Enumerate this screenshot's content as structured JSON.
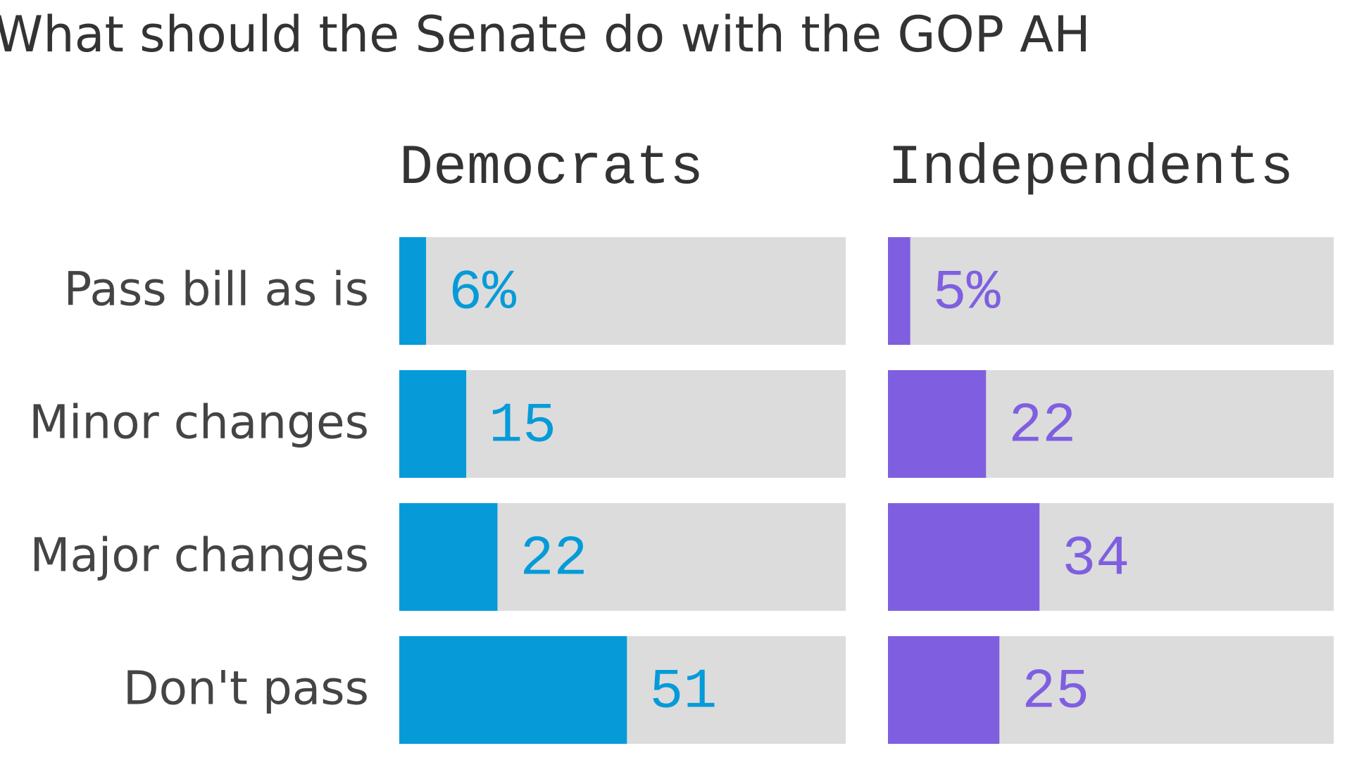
{
  "chart_data": {
    "type": "bar",
    "title": "What should the Senate do with the GOP AH",
    "categories": [
      "Pass bill as is",
      "Minor changes",
      "Major changes",
      "Don't pass"
    ],
    "series": [
      {
        "name": "Democrats",
        "color": "#069bd8",
        "values": [
          6,
          15,
          22,
          51
        ],
        "value_labels": [
          "6%",
          "15",
          "22",
          "51"
        ]
      },
      {
        "name": "Independents",
        "color": "#7f5fe0",
        "values": [
          5,
          22,
          34,
          25
        ],
        "value_labels": [
          "5%",
          "22",
          "34",
          "25"
        ]
      }
    ],
    "xlim": [
      0,
      100
    ],
    "track_color": "#dcdcdc"
  }
}
